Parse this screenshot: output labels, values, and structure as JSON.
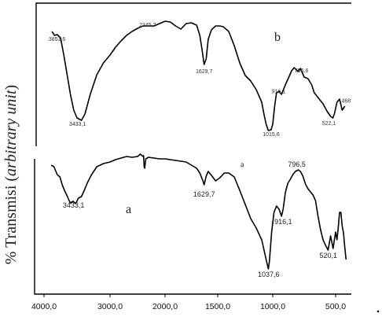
{
  "chart_data": {
    "type": "line",
    "title": "",
    "xlabel": "",
    "ylabel": "% Transmisi (arbitrary unit)",
    "ylabel_prefix": "% Transmisi (",
    "ylabel_italic": "arbitrary unit",
    "ylabel_suffix": ")",
    "x_reversed": true,
    "xlim": [
      4000,
      380
    ],
    "x_ticks": [
      4000,
      3000,
      2000,
      1500,
      1000,
      500
    ],
    "x_tick_labels": [
      "4000,0",
      "3000,0",
      "2000,0",
      "1500,0",
      "1000,0",
      "500,0"
    ],
    "series": [
      {
        "name": "b",
        "points": [
          [
            3880,
            40
          ],
          [
            3840,
            45
          ],
          [
            3800,
            44
          ],
          [
            3750,
            48
          ],
          [
            3700,
            70
          ],
          [
            3650,
            95
          ],
          [
            3600,
            120
          ],
          [
            3550,
            140
          ],
          [
            3500,
            150
          ],
          [
            3433,
            153
          ],
          [
            3380,
            145
          ],
          [
            3300,
            120
          ],
          [
            3200,
            95
          ],
          [
            3100,
            80
          ],
          [
            3000,
            70
          ],
          [
            2900,
            60
          ],
          [
            2800,
            52
          ],
          [
            2700,
            45
          ],
          [
            2600,
            40
          ],
          [
            2500,
            36
          ],
          [
            2400,
            33
          ],
          [
            2300,
            33
          ],
          [
            2200,
            33
          ],
          [
            2100,
            30
          ],
          [
            2000,
            27
          ],
          [
            1950,
            28
          ],
          [
            1900,
            33
          ],
          [
            1850,
            37
          ],
          [
            1800,
            30
          ],
          [
            1750,
            29
          ],
          [
            1700,
            32
          ],
          [
            1670,
            45
          ],
          [
            1650,
            62
          ],
          [
            1629,
            82
          ],
          [
            1610,
            75
          ],
          [
            1590,
            50
          ],
          [
            1560,
            38
          ],
          [
            1520,
            33
          ],
          [
            1480,
            33
          ],
          [
            1450,
            34
          ],
          [
            1400,
            40
          ],
          [
            1350,
            58
          ],
          [
            1300,
            80
          ],
          [
            1250,
            96
          ],
          [
            1200,
            103
          ],
          [
            1150,
            114
          ],
          [
            1100,
            130
          ],
          [
            1080,
            145
          ],
          [
            1060,
            158
          ],
          [
            1040,
            166
          ],
          [
            1015,
            165
          ],
          [
            1000,
            158
          ],
          [
            985,
            135
          ],
          [
            970,
            118
          ],
          [
            950,
            116
          ],
          [
            930,
            120
          ],
          [
            900,
            108
          ],
          [
            880,
            101
          ],
          [
            850,
            90
          ],
          [
            830,
            86
          ],
          [
            800,
            91
          ],
          [
            780,
            87
          ],
          [
            750,
            98
          ],
          [
            720,
            100
          ],
          [
            690,
            108
          ],
          [
            670,
            118
          ],
          [
            650,
            122
          ],
          [
            600,
            132
          ],
          [
            570,
            141
          ],
          [
            540,
            148
          ],
          [
            522,
            150
          ],
          [
            510,
            145
          ],
          [
            490,
            130
          ],
          [
            470,
            126
          ],
          [
            450,
            140
          ],
          [
            430,
            135
          ]
        ],
        "annotations": [
          {
            "x": 3850,
            "label": "3853,6"
          },
          {
            "x": 2345,
            "label": "2345,7"
          },
          {
            "x": 1629,
            "label": "1629,7"
          },
          {
            "x": 3433,
            "label": "3433,1"
          },
          {
            "x": 1015,
            "label": "1015,6"
          },
          {
            "x": 796,
            "label": "796,6"
          },
          {
            "x": 916,
            "label": "916,1"
          },
          {
            "x": 468,
            "label": "468"
          },
          {
            "x": 522,
            "label": "522,1"
          }
        ]
      },
      {
        "name": "a",
        "points": [
          [
            3890,
            210
          ],
          [
            3850,
            212
          ],
          [
            3800,
            222
          ],
          [
            3760,
            225
          ],
          [
            3720,
            236
          ],
          [
            3680,
            244
          ],
          [
            3650,
            249
          ],
          [
            3620,
            255
          ],
          [
            3600,
            258
          ],
          [
            3560,
            256
          ],
          [
            3520,
            259
          ],
          [
            3480,
            252
          ],
          [
            3433,
            250
          ],
          [
            3390,
            242
          ],
          [
            3340,
            232
          ],
          [
            3280,
            222
          ],
          [
            3200,
            212
          ],
          [
            3100,
            208
          ],
          [
            3000,
            206
          ],
          [
            2900,
            203
          ],
          [
            2800,
            201
          ],
          [
            2700,
            199
          ],
          [
            2600,
            200
          ],
          [
            2500,
            199
          ],
          [
            2450,
            196
          ],
          [
            2400,
            199
          ],
          [
            2390,
            198
          ],
          [
            2380,
            212
          ],
          [
            2370,
            214
          ],
          [
            2350,
            202
          ],
          [
            2300,
            200
          ],
          [
            2200,
            201
          ],
          [
            2100,
            202
          ],
          [
            2000,
            202
          ],
          [
            1950,
            203
          ],
          [
            1900,
            204
          ],
          [
            1850,
            205
          ],
          [
            1800,
            206
          ],
          [
            1750,
            210
          ],
          [
            1700,
            214
          ],
          [
            1670,
            220
          ],
          [
            1640,
            230
          ],
          [
            1629,
            235
          ],
          [
            1610,
            224
          ],
          [
            1590,
            218
          ],
          [
            1560,
            223
          ],
          [
            1520,
            230
          ],
          [
            1480,
            226
          ],
          [
            1440,
            220
          ],
          [
            1400,
            220
          ],
          [
            1350,
            225
          ],
          [
            1300,
            242
          ],
          [
            1250,
            260
          ],
          [
            1200,
            278
          ],
          [
            1150,
            290
          ],
          [
            1100,
            305
          ],
          [
            1060,
            330
          ],
          [
            1040,
            342
          ],
          [
            1030,
            332
          ],
          [
            1010,
            295
          ],
          [
            990,
            270
          ],
          [
            970,
            262
          ],
          [
            950,
            266
          ],
          [
            930,
            275
          ],
          [
            916,
            265
          ],
          [
            900,
            245
          ],
          [
            880,
            233
          ],
          [
            860,
            228
          ],
          [
            840,
            222
          ],
          [
            820,
            218
          ],
          [
            796,
            216
          ],
          [
            780,
            218
          ],
          [
            760,
            224
          ],
          [
            740,
            234
          ],
          [
            720,
            240
          ],
          [
            700,
            244
          ],
          [
            680,
            248
          ],
          [
            660,
            255
          ],
          [
            640,
            275
          ],
          [
            620,
            292
          ],
          [
            600,
            305
          ],
          [
            580,
            312
          ],
          [
            560,
            318
          ],
          [
            540,
            300
          ],
          [
            530,
            308
          ],
          [
            520,
            316
          ],
          [
            510,
            305
          ],
          [
            500,
            295
          ],
          [
            490,
            305
          ],
          [
            480,
            290
          ],
          [
            470,
            270
          ],
          [
            460,
            270
          ],
          [
            450,
            287
          ],
          [
            440,
            296
          ],
          [
            430,
            315
          ],
          [
            420,
            330
          ]
        ],
        "annotations": [
          {
            "x": 3433,
            "label": "3433,1"
          },
          {
            "x": 1629,
            "label": "1629,7"
          },
          {
            "x": 796,
            "label": "796,5"
          },
          {
            "x": 916,
            "label": "916,1"
          },
          {
            "x": 1037,
            "label": "1037,6"
          },
          {
            "x": 520,
            "label": "520,1"
          }
        ]
      }
    ],
    "series_marks": [
      {
        "label": "b"
      },
      {
        "label": "a"
      },
      {
        "label": "a"
      }
    ],
    "grid": false,
    "legend": "none"
  }
}
